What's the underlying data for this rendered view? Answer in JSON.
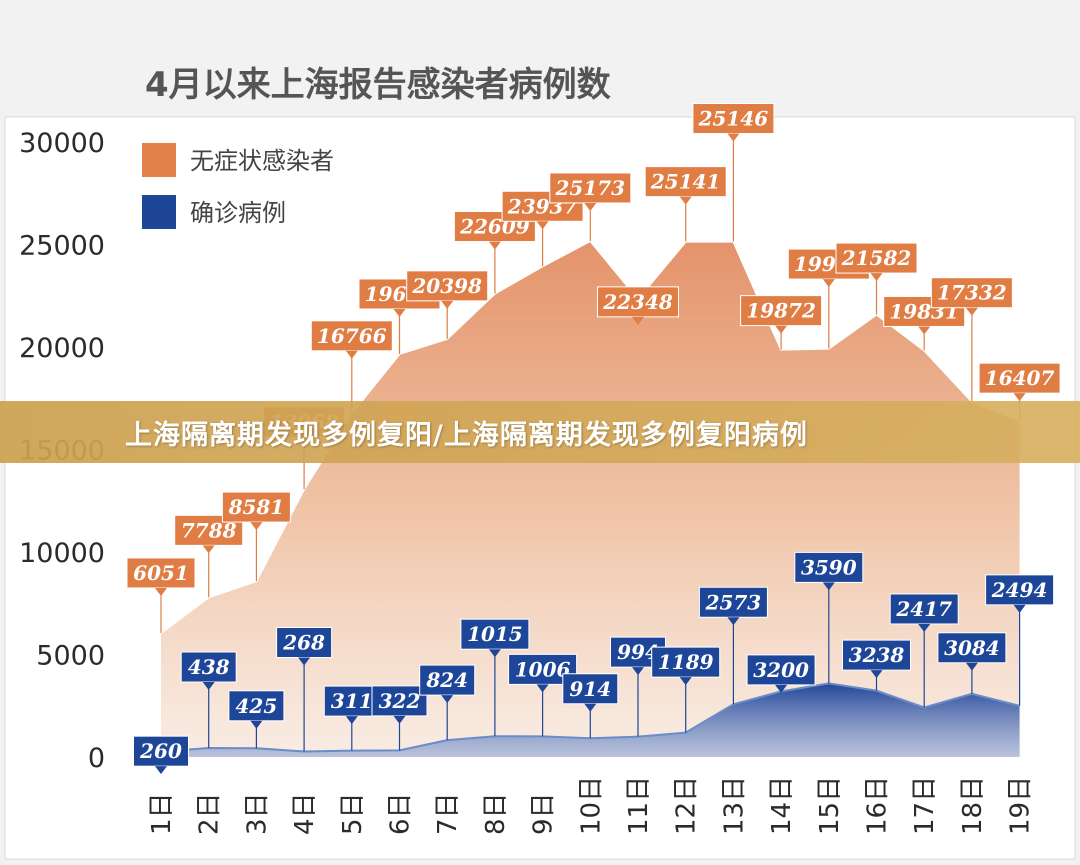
{
  "banner": {
    "text": "上海隔离期发现多例复阳/上海隔离期发现多例复阳病例"
  },
  "chart_data": {
    "type": "area",
    "title": "4月以来上海报告感染者病例数",
    "categories": [
      "1日",
      "2日",
      "3日",
      "4日",
      "5日",
      "6日",
      "7日",
      "8日",
      "9日",
      "10日",
      "11日",
      "12日",
      "13日",
      "14日",
      "15日",
      "16日",
      "17日",
      "18日",
      "19日"
    ],
    "series": [
      {
        "name": "无症状感染者",
        "color": "#e0824a",
        "values": [
          6051,
          7788,
          8581,
          13068,
          16766,
          19660,
          20398,
          22609,
          23937,
          25173,
          22348,
          25141,
          25146,
          19872,
          19923,
          21582,
          19831,
          17332,
          16407
        ]
      },
      {
        "name": "确诊病例",
        "color": "#1e4698",
        "values": [
          260,
          438,
          425,
          268,
          311,
          322,
          824,
          1015,
          1006,
          914,
          994,
          1189,
          2573,
          3200,
          3590,
          3238,
          2417,
          3084,
          2494
        ]
      }
    ],
    "yticks": [
      "0",
      "5000",
      "10000",
      "15000",
      "20000",
      "25000",
      "30000"
    ],
    "ylim": [
      0,
      30000
    ],
    "legend_position": "top-left"
  }
}
